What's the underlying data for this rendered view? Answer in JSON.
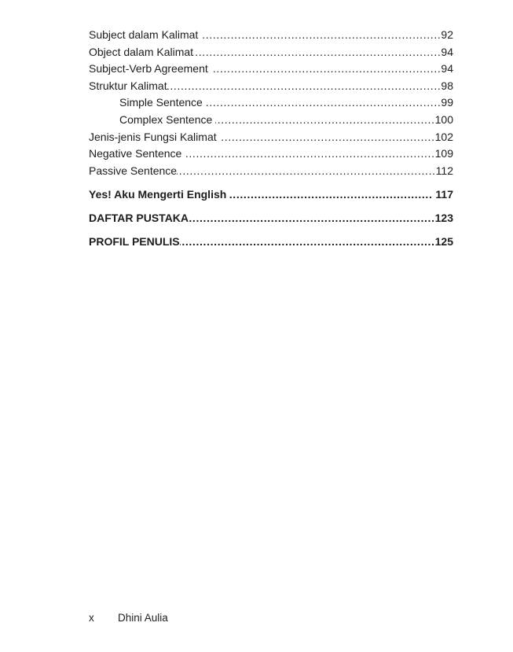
{
  "document": {
    "colors": {
      "background": "#ffffff",
      "text": "#1d1d1d"
    },
    "toc_entries": [
      {
        "title": "Subject dalam Kalimat ",
        "page": "92",
        "indent": false,
        "bold": false
      },
      {
        "title": "Object dalam Kalimat",
        "page": "94",
        "indent": false,
        "bold": false
      },
      {
        "title": "Subject-Verb Agreement ",
        "page": "94",
        "indent": false,
        "bold": false
      },
      {
        "title": "Struktur Kalimat",
        "page": "98",
        "indent": false,
        "bold": false
      },
      {
        "title": "Simple Sentence ",
        "page": "99",
        "indent": true,
        "bold": false
      },
      {
        "title": "Complex Sentence ",
        "page": "100",
        "indent": true,
        "bold": false
      },
      {
        "title": "Jenis-jenis Fungsi Kalimat ",
        "page": "102",
        "indent": false,
        "bold": false
      },
      {
        "title": "Negative Sentence ",
        "page": "109",
        "indent": false,
        "bold": false
      },
      {
        "title": "Passive Sentence",
        "page": "112",
        "indent": false,
        "bold": false
      },
      {
        "title": "Yes! Aku Mengerti English ",
        "page": " 117",
        "indent": false,
        "bold": true
      },
      {
        "title": "DAFTAR PUSTAKA",
        "page": "123",
        "indent": false,
        "bold": true
      },
      {
        "title": "PROFIL PENULIS",
        "page": "125",
        "indent": false,
        "bold": true
      }
    ],
    "footer": {
      "page_number": "x",
      "author": "Dhini Aulia"
    }
  }
}
